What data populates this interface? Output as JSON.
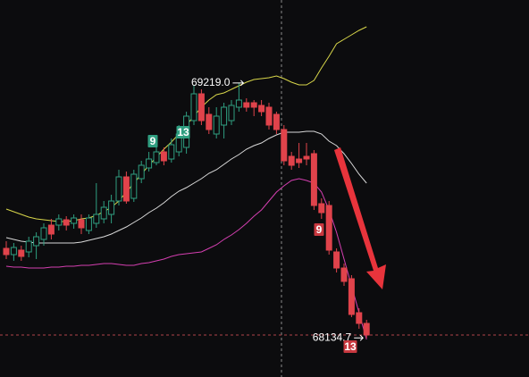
{
  "chart_data": {
    "type": "candlestick",
    "ylim": [
      67968.4,
      69572
    ],
    "up_color": "#2f9e80",
    "down_color": "#e0434b",
    "open": [
      68515.6,
      68489,
      68508,
      68500.4,
      68527,
      68553.6,
      68614.4,
      68614.4,
      68637.2,
      68622,
      68637.2,
      68591.6,
      68622,
      68641,
      68660,
      68717,
      68819.6,
      68728.4,
      68812,
      68857.6,
      68880.4,
      68926,
      68895.6,
      68926,
      68945,
      69059,
      69173,
      69085.6,
      69002,
      69040,
      69059,
      69116,
      69135,
      69135,
      69123.6,
      69116,
      69085.6,
      69021,
      68907,
      68895.6,
      68907,
      68918.4,
      68705.6,
      68698,
      68500.4,
      68432,
      68386.4,
      68242,
      68196.4
    ],
    "high": [
      68546,
      68538.4,
      68527,
      68565,
      68584,
      68622,
      68641,
      68660,
      68652.4,
      68660,
      68660,
      68660,
      68793,
      68717,
      68743.6,
      68850,
      68842.4,
      68850,
      68888,
      68926,
      68956.4,
      68945,
      68983,
      69040,
      69097,
      69211,
      69192,
      69116,
      69116,
      69135,
      69146.4,
      69219.0,
      69154,
      69146.4,
      69146.4,
      69135,
      69097,
      69040,
      68926,
      68964,
      68964,
      68933.6,
      68728.4,
      68717,
      68515.6,
      68451,
      68401.6,
      68261,
      68211.6
    ],
    "low": [
      68470,
      68462.4,
      68462.4,
      68477.6,
      68470,
      68527,
      68553.6,
      68591.6,
      68591.6,
      68599.2,
      68576.4,
      68576.4,
      68603,
      68622,
      68622,
      68698,
      68705.6,
      68713.2,
      68793,
      68842.4,
      68869,
      68869,
      68880.4,
      68907,
      68918.4,
      69040,
      69040,
      69002,
      68983,
      68983,
      69040,
      69097,
      69097,
      69078,
      69078,
      69021,
      69002,
      68869,
      68850,
      68857.6,
      68869,
      68679,
      68641,
      68489,
      68413,
      68356,
      68223,
      68173.6,
      68134.7
    ],
    "close": [
      68489,
      68519.4,
      68481.4,
      68546,
      68565,
      68603,
      68576.4,
      68641,
      68614.4,
      68644.8,
      68603,
      68644.8,
      68660,
      68690.4,
      68717,
      68819.6,
      68717,
      68831,
      68869,
      68895.6,
      68926,
      68888,
      68956.4,
      69002,
      69078,
      69173,
      69059,
      69021,
      69078,
      69116,
      69123.6,
      69146.4,
      69116,
      69116,
      69097,
      69040,
      69021,
      68888,
      68869,
      68880.4,
      68895.6,
      68698,
      68667.6,
      68508,
      68432,
      68375,
      68234.4,
      68196.4,
      68147
    ],
    "series": [
      {
        "color": "#d8d64a",
        "values": [
          68682.8,
          68671.4,
          68660,
          68648.6,
          68641,
          68637.2,
          68633.4,
          68629.6,
          68629.6,
          68633.4,
          68641,
          68644.8,
          68656.2,
          68671.4,
          68690.4,
          68717,
          68755,
          68793,
          68831,
          68869,
          68903.2,
          68937.4,
          68967.8,
          69002,
          69040,
          69078,
          69116,
          69146.4,
          69169.2,
          69176.8,
          69192,
          69207.2,
          69222.4,
          69233.8,
          69237.6,
          69241.4,
          69249,
          69237.6,
          69222.4,
          69211,
          69211,
          69230,
          69283.2,
          69332.6,
          69385.8,
          69404.8,
          69423.8,
          69442.8,
          69458
        ]
      },
      {
        "color": "#d9d9d9",
        "values": [
          68561.2,
          68553.6,
          68546,
          68542.2,
          68538.4,
          68538.4,
          68538.4,
          68538.4,
          68538.4,
          68538.4,
          68542.2,
          68549.8,
          68557.4,
          68565,
          68576.4,
          68591.6,
          68606.8,
          68625.8,
          68644.8,
          68667.6,
          68686.6,
          68709.4,
          68736,
          68758.8,
          68774,
          68793,
          68812,
          68834.8,
          68850,
          68872.8,
          68895.6,
          68914.6,
          68937.4,
          68952.6,
          68964,
          68983,
          68998.2,
          69009.6,
          69009.6,
          69009.6,
          69013.4,
          69013.4,
          69002,
          68971.6,
          68952.6,
          68918.4,
          68876.6,
          68831,
          68793
        ]
      },
      {
        "color": "#d43fb0",
        "values": [
          68439.6,
          68435.8,
          68435.8,
          68432,
          68432,
          68432,
          68435.8,
          68435.8,
          68439.6,
          68439.6,
          68443.4,
          68443.4,
          68447.2,
          68451,
          68451,
          68447.2,
          68443.4,
          68443.4,
          68451,
          68454.8,
          68462.4,
          68470,
          68481.4,
          68489,
          68492.8,
          68496.6,
          68500.4,
          68515.6,
          68530.8,
          68553.6,
          68572.6,
          68595.4,
          68622,
          68652.4,
          68679,
          68717,
          68755,
          68781.6,
          68804.4,
          68812,
          68804.4,
          68793,
          68755,
          68679,
          68584,
          68470,
          68356,
          68242,
          68128
        ]
      }
    ],
    "max_label": "69219.0",
    "min_label": "68134.7",
    "td_labels": [
      {
        "text": "9",
        "color": "#2f9e80"
      },
      {
        "text": "13",
        "color": "#2f9e80"
      },
      {
        "text": "9",
        "color": "#c8383f"
      },
      {
        "text": "13",
        "color": "#c8383f"
      }
    ]
  }
}
